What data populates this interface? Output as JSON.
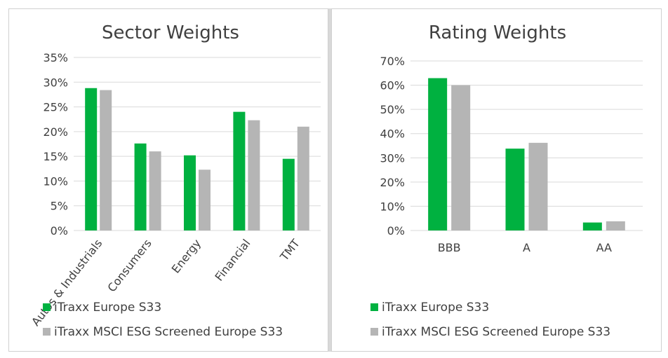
{
  "colors": {
    "series1": "#00b140",
    "series2": "#b5b5b5",
    "grid": "#d9d9d9",
    "text": "#404040"
  },
  "chart_data": [
    {
      "type": "bar",
      "title": "Sector Weights",
      "categories": [
        "Autos & Industrials",
        "Consumers",
        "Energy",
        "Financial",
        "TMT"
      ],
      "series": [
        {
          "name": "iTraxx Europe S33",
          "values": [
            28.8,
            17.6,
            15.2,
            24.0,
            14.5
          ]
        },
        {
          "name": "iTraxx MSCI ESG Screened Europe S33",
          "values": [
            28.4,
            16.0,
            12.3,
            22.3,
            21.0
          ]
        }
      ],
      "ylim": [
        0,
        35
      ],
      "yticks": [
        "0%",
        "5%",
        "10%",
        "15%",
        "20%",
        "25%",
        "30%",
        "35%"
      ],
      "grid": true,
      "legend": "bottom"
    },
    {
      "type": "bar",
      "title": "Rating Weights",
      "categories": [
        "BBB",
        "A",
        "AA"
      ],
      "series": [
        {
          "name": "iTraxx Europe S33",
          "values": [
            62.9,
            33.8,
            3.3
          ]
        },
        {
          "name": "iTraxx MSCI ESG Screened Europe S33",
          "values": [
            60.0,
            36.2,
            3.8
          ]
        }
      ],
      "ylim": [
        0,
        70
      ],
      "yticks": [
        "0%",
        "10%",
        "20%",
        "30%",
        "40%",
        "50%",
        "60%",
        "70%"
      ],
      "grid": true,
      "legend": "bottom"
    }
  ]
}
